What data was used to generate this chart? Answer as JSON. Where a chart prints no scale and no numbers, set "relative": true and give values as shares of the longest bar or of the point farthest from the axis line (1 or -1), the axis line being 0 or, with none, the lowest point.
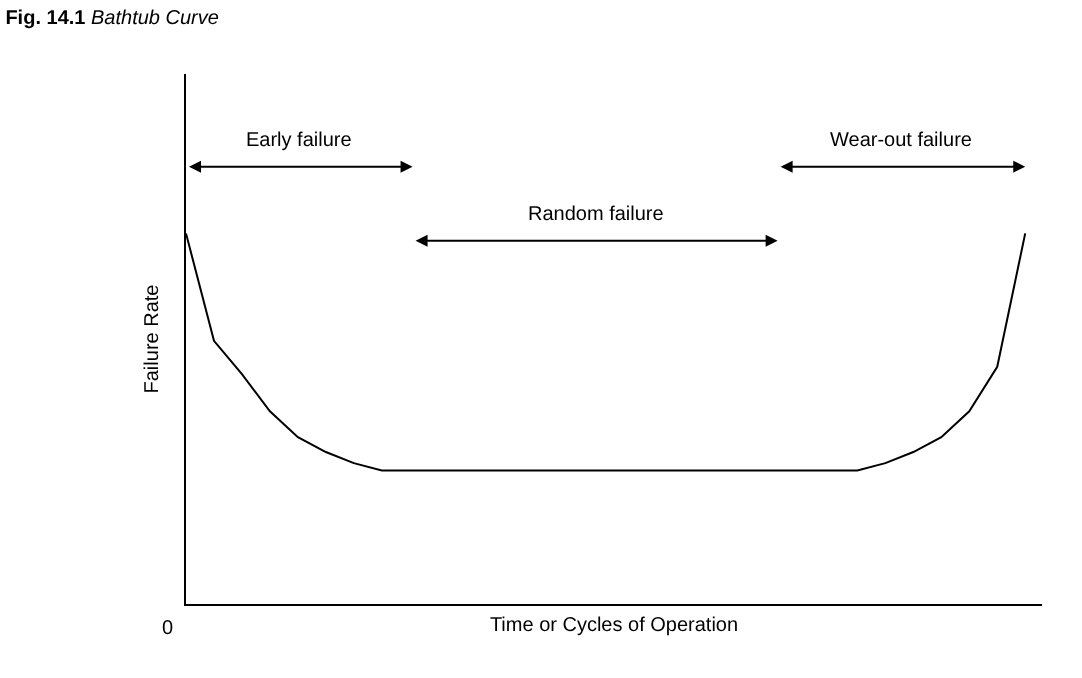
{
  "chart_data": {
    "type": "line",
    "relative": true,
    "title": "Fig. 14.1 Bathtub Curve",
    "xlabel": "Time or Cycles of Operation",
    "ylabel": "Failure Rate",
    "categories": [
      null,
      null,
      null,
      null,
      null,
      null,
      null,
      null,
      null,
      null,
      null,
      null,
      null,
      null,
      null,
      null,
      null,
      null,
      null,
      null,
      null,
      null,
      null,
      null,
      null,
      null,
      null,
      null,
      null,
      null,
      null
    ],
    "series": [
      {
        "color": "#000000",
        "values": [
          1.0,
          0.71,
          0.62,
          0.52,
          0.45,
          0.41,
          0.38,
          0.36,
          0.36,
          0.36,
          0.36,
          0.36,
          0.36,
          0.36,
          0.36,
          0.36,
          0.36,
          0.36,
          0.36,
          0.36,
          0.36,
          0.36,
          0.36,
          0.36,
          0.36,
          0.38,
          0.41,
          0.45,
          0.52,
          0.64,
          1.0
        ]
      }
    ],
    "annotations": [
      "0",
      "Early failure",
      "Random failure",
      "Wear-out failure"
    ],
    "marker": "none",
    "line_style": "solid"
  }
}
